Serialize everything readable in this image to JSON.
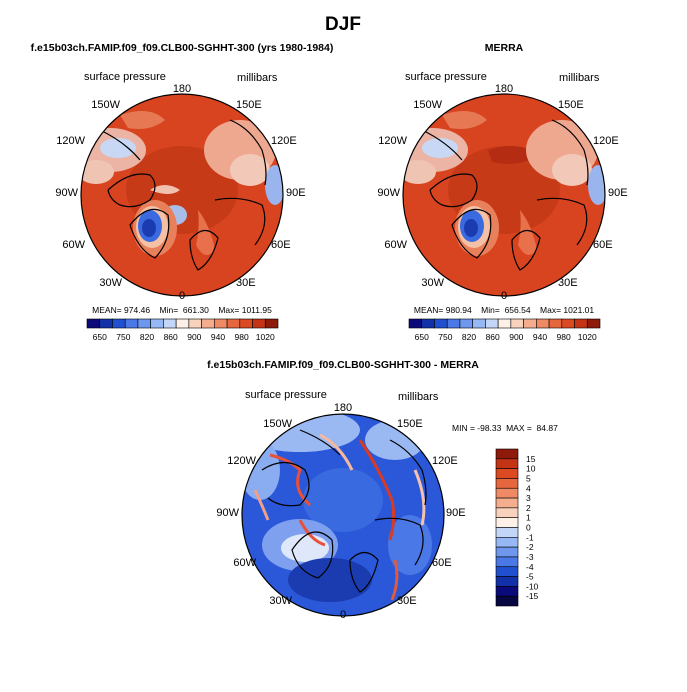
{
  "figure": {
    "season": "DJF",
    "left_title": "f.e15b03ch.FAMIP.f09_f09.CLB00-SGHHT-300 (yrs 1980-1984)",
    "right_title": "MERRA",
    "diff_title": "f.e15b03ch.FAMIP.f09_f09.CLB00-SGHHT-300 - MERRA"
  },
  "panel_labels": {
    "variable": "surface pressure",
    "units": "millibars"
  },
  "longitude_labels": {
    "top": "180",
    "upper_left": "150W",
    "upper_right": "150E",
    "mid_upper_left": "120W",
    "mid_upper_right": "120E",
    "left": "90W",
    "right": "90E",
    "mid_lower_left": "60W",
    "mid_lower_right": "60E",
    "lower_left": "30W",
    "lower_right": "30E",
    "bottom": "0"
  },
  "chart_data": [
    {
      "type": "heatmap",
      "panel": "model",
      "title": "f.e15b03ch.FAMIP.f09_f09.CLB00-SGHHT-300 (yrs 1980-1984)",
      "variable": "surface pressure",
      "units": "millibars",
      "projection": "polar stereographic (north)",
      "stats_text": "MEAN= 974.46    Min=  661.30    Max= 1011.95",
      "mean": 974.46,
      "min": 661.3,
      "max": 1011.95,
      "levels": [
        650,
        700,
        750,
        800,
        820,
        840,
        860,
        880,
        900,
        920,
        940,
        960,
        980,
        1000,
        1020
      ],
      "colorbar_ticks": [
        "650",
        "750",
        "820",
        "860",
        "900",
        "940",
        "980",
        "1020"
      ],
      "colors": [
        "#0a0a7a",
        "#1230a8",
        "#2050d0",
        "#4a78e6",
        "#6e98ee",
        "#96b8f4",
        "#c4d6f8",
        "#fdf0e6",
        "#f8d2bc",
        "#f4ae8e",
        "#ee8a64",
        "#e6663e",
        "#dc4a22",
        "#c43414",
        "#8e1a0a"
      ]
    },
    {
      "type": "heatmap",
      "panel": "obs",
      "title": "MERRA",
      "variable": "surface pressure",
      "units": "millibars",
      "projection": "polar stereographic (north)",
      "stats_text": "MEAN= 980.94    Min=  656.54    Max= 1021.01",
      "mean": 980.94,
      "min": 656.54,
      "max": 1021.01,
      "levels": [
        650,
        700,
        750,
        800,
        820,
        840,
        860,
        880,
        900,
        920,
        940,
        960,
        980,
        1000,
        1020
      ],
      "colorbar_ticks": [
        "650",
        "750",
        "820",
        "860",
        "900",
        "940",
        "980",
        "1020"
      ],
      "colors": [
        "#0a0a7a",
        "#1230a8",
        "#2050d0",
        "#4a78e6",
        "#6e98ee",
        "#96b8f4",
        "#c4d6f8",
        "#fdf0e6",
        "#f8d2bc",
        "#f4ae8e",
        "#ee8a64",
        "#e6663e",
        "#dc4a22",
        "#c43414",
        "#8e1a0a"
      ]
    },
    {
      "type": "heatmap",
      "panel": "difference",
      "title": "f.e15b03ch.FAMIP.f09_f09.CLB00-SGHHT-300 - MERRA",
      "variable": "surface pressure",
      "units": "millibars",
      "projection": "polar stereographic (north)",
      "stats_text": "MIN = -98.33  MAX =  84.87",
      "min": -98.33,
      "max": 84.87,
      "colorbar_ticks": [
        "15",
        "10",
        "5",
        "4",
        "3",
        "2",
        "1",
        "0",
        "-1",
        "-2",
        "-3",
        "-4",
        "-5",
        "-10",
        "-15"
      ],
      "colors": [
        "#8e1a0a",
        "#c43414",
        "#dc4a22",
        "#e6663e",
        "#ee8a64",
        "#f4ae8e",
        "#f8d2bc",
        "#fdf0e6",
        "#c4d6f8",
        "#96b8f4",
        "#6e98ee",
        "#4a78e6",
        "#2050d0",
        "#1230a8",
        "#0a0a7a",
        "#060640"
      ]
    }
  ]
}
